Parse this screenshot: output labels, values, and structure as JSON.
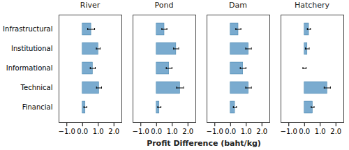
{
  "chart_data": [
    {
      "type": "bar",
      "title": "River",
      "orientation": "horizontal",
      "categories": [
        "Infrastructural",
        "Institutional",
        "Informational",
        "Technical",
        "Financial"
      ],
      "values": [
        0.55,
        1.0,
        0.65,
        1.05,
        0.18
      ],
      "errors": [
        0.22,
        0.12,
        0.16,
        0.16,
        0.09
      ],
      "color": "#7aabcf",
      "xlabel": "Profit Difference (baht/kg)",
      "xlim": [
        -1.5,
        2.5
      ],
      "xticks": [
        -1,
        0,
        1,
        2
      ],
      "grid": false
    },
    {
      "type": "bar",
      "title": "Pond",
      "orientation": "horizontal",
      "categories": [
        "Infrastructural",
        "Institutional",
        "Informational",
        "Technical",
        "Financial"
      ],
      "values": [
        0.5,
        1.25,
        0.8,
        1.5,
        0.18
      ],
      "errors": [
        0.16,
        0.16,
        0.18,
        0.22,
        0.1
      ],
      "color": "#7aabcf",
      "xlabel": "Profit Difference (baht/kg)",
      "xlim": [
        -1.5,
        2.5
      ],
      "xticks": [
        -1,
        0,
        1,
        2
      ],
      "grid": false,
      "tick_labels": "x"
    },
    {
      "type": "bar",
      "title": "Dam",
      "orientation": "horizontal",
      "categories": [
        "Infrastructural",
        "Institutional",
        "Informational",
        "Technical",
        "Financial"
      ],
      "values": [
        0.5,
        1.15,
        0.8,
        1.15,
        0.28
      ],
      "errors": [
        0.16,
        0.18,
        0.18,
        0.18,
        0.1
      ],
      "color": "#7aabcf",
      "xlabel": "Profit Difference (baht/kg)",
      "xlim": [
        -1.5,
        2.5
      ],
      "xticks": [
        -1,
        0,
        1,
        2
      ],
      "grid": false,
      "tick_labels": "x"
    },
    {
      "type": "bar",
      "title": "Hatchery",
      "orientation": "horizontal",
      "categories": [
        "Infrastructural",
        "Institutional",
        "Informational",
        "Technical",
        "Financial"
      ],
      "values": [
        0.28,
        0.18,
        0.0,
        1.45,
        0.52
      ],
      "errors": [
        0.1,
        0.12,
        0.1,
        0.2,
        0.09
      ],
      "color": "#7aabcf",
      "xlabel": "Profit Difference (baht/kg)",
      "xlim": [
        -1.5,
        2.5
      ],
      "xticks": [
        -1,
        0,
        1,
        2
      ],
      "grid": false,
      "tick_labels": "x"
    }
  ]
}
